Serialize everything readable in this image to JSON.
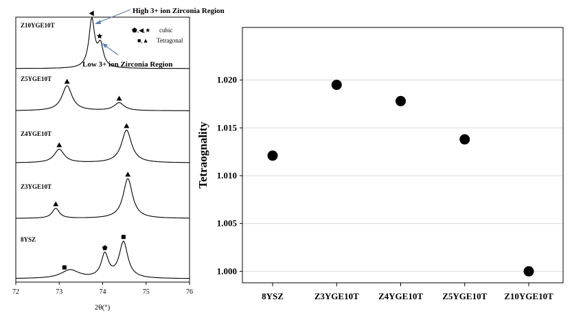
{
  "chart_data": [
    {
      "type": "line",
      "xlabel": "2θ(°)",
      "xlim": [
        72,
        76
      ],
      "xticks": [
        72,
        73,
        74,
        75,
        76
      ],
      "ylabel": "",
      "stacked_series": [
        {
          "name": "Z10YGE10T",
          "peaks": [
            {
              "x": 73.75,
              "h": 1.0,
              "w": 0.08
            },
            {
              "x": 73.95,
              "h": 0.45,
              "w": 0.08
            }
          ],
          "markers": [
            {
              "x": 73.75,
              "symbol": "cubic-tri-left"
            },
            {
              "x": 73.93,
              "symbol": "cubic-star"
            }
          ]
        },
        {
          "name": "Z5YGE10T",
          "peaks": [
            {
              "x": 73.18,
              "h": 0.7,
              "w": 0.14
            },
            {
              "x": 74.38,
              "h": 0.22,
              "w": 0.14
            }
          ],
          "markers": [
            {
              "x": 73.18,
              "symbol": "tetragonal-triangle"
            },
            {
              "x": 74.38,
              "symbol": "tetragonal-triangle"
            }
          ]
        },
        {
          "name": "Z4YGE10T",
          "peaks": [
            {
              "x": 73.0,
              "h": 0.35,
              "w": 0.14
            },
            {
              "x": 74.55,
              "h": 0.85,
              "w": 0.14
            }
          ],
          "markers": [
            {
              "x": 73.0,
              "symbol": "tetragonal-triangle"
            },
            {
              "x": 74.55,
              "symbol": "tetragonal-triangle"
            }
          ]
        },
        {
          "name": "Z3YGE10T",
          "peaks": [
            {
              "x": 72.92,
              "h": 0.25,
              "w": 0.1
            },
            {
              "x": 74.58,
              "h": 1.0,
              "w": 0.13
            }
          ],
          "markers": [
            {
              "x": 72.92,
              "symbol": "tetragonal-triangle"
            },
            {
              "x": 74.58,
              "symbol": "tetragonal-triangle"
            }
          ]
        },
        {
          "name": "8YSZ",
          "peaks": [
            {
              "x": 73.25,
              "h": 0.2,
              "w": 0.25
            },
            {
              "x": 74.05,
              "h": 0.55,
              "w": 0.1
            },
            {
              "x": 74.48,
              "h": 0.85,
              "w": 0.12
            }
          ],
          "markers": [
            {
              "x": 73.12,
              "symbol": "tetragonal-square"
            },
            {
              "x": 74.05,
              "symbol": "cubic-pentagon"
            },
            {
              "x": 74.48,
              "symbol": "tetragonal-square"
            }
          ]
        }
      ],
      "legend": [
        {
          "symbols": "⬟,◀,★",
          "label": "cubic"
        },
        {
          "symbols": "■,▲",
          "label": "Tetragonal"
        }
      ],
      "annotations": [
        "High 3+ ion Zirconia Region",
        "Low 3+ ion Zirconia Region"
      ]
    },
    {
      "type": "scatter",
      "categories": [
        "8YSZ",
        "Z3YGE10T",
        "Z4YGE10T",
        "Z5YGE10T",
        "Z10YGE10T"
      ],
      "values": [
        1.0121,
        1.0195,
        1.0178,
        1.0138,
        1.0
      ],
      "xlabel": "",
      "ylabel": "Tetraognality",
      "ylim": [
        0.9988,
        1.0255
      ],
      "yticks": [
        "1.000",
        "1.005",
        "1.010",
        "1.015",
        "1.020"
      ],
      "grid": true
    }
  ]
}
